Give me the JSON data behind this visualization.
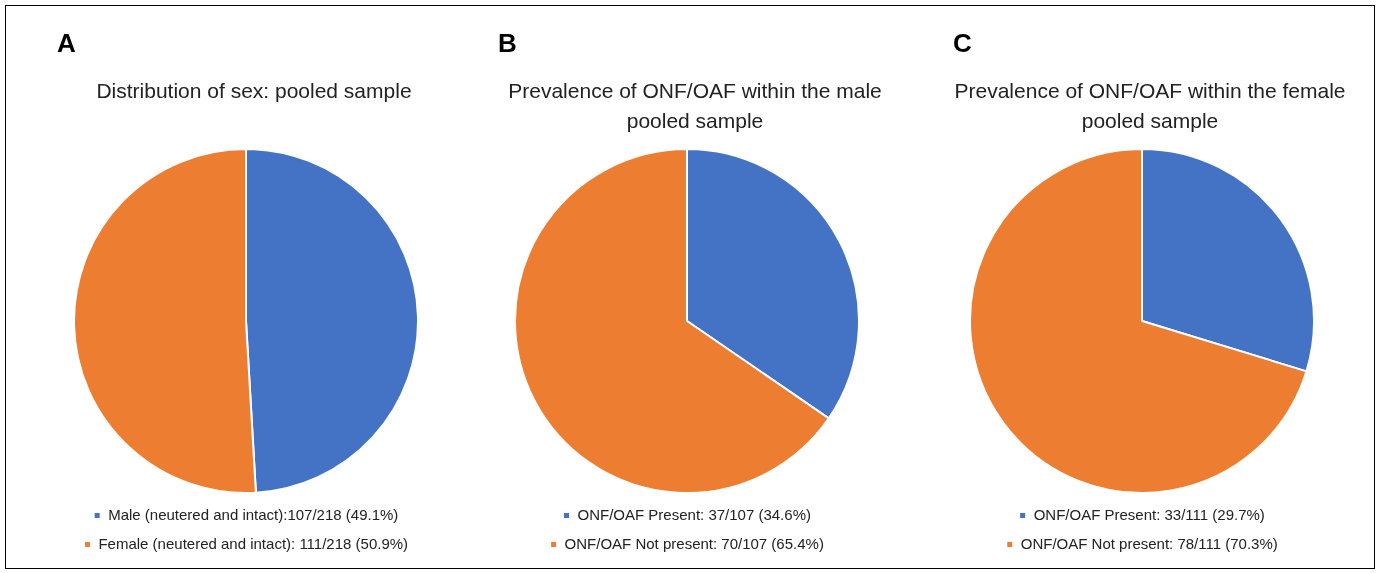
{
  "chart_data": [
    {
      "type": "pie",
      "annotations": [
        "A"
      ],
      "title": "Distribution of sex: pooled sample",
      "categories": [
        "Male (neutered and intact):107/218 (49.1%)",
        "Female (neutered and intact): 111/218 (50.9%)"
      ],
      "values": [
        107,
        111
      ],
      "colors": [
        "#4472c4",
        "#ed7d31"
      ],
      "legend": "bottom"
    },
    {
      "type": "pie",
      "annotations": [
        "B"
      ],
      "title": "Prevalence of ONF/OAF within the male pooled sample",
      "categories": [
        "ONF/OAF Present: 37/107 (34.6%)",
        "ONF/OAF Not present: 70/107 (65.4%)"
      ],
      "values": [
        37,
        70
      ],
      "colors": [
        "#4472c4",
        "#ed7d31"
      ],
      "legend": "bottom"
    },
    {
      "type": "pie",
      "annotations": [
        "C"
      ],
      "title": "Prevalence of ONF/OAF within the female pooled sample",
      "categories": [
        "ONF/OAF Present: 33/111 (29.7%)",
        "ONF/OAF Not present: 78/111 (70.3%)"
      ],
      "values": [
        33,
        78
      ],
      "colors": [
        "#4472c4",
        "#ed7d31"
      ],
      "legend": "bottom"
    }
  ]
}
